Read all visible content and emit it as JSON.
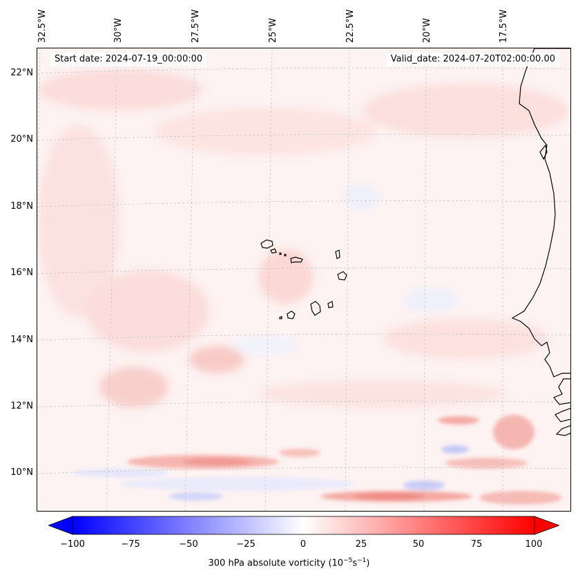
{
  "map": {
    "start_date_text": "Start date: 2024-07-19_00:00:00",
    "valid_date_text": "Valid_date: 2024-07-20T02:00:00.00",
    "longitude_labels": [
      "32.5°W",
      "30°W",
      "27.5°W",
      "25°W",
      "22.5°W",
      "20°W",
      "17.5°W"
    ],
    "latitude_labels": [
      "22°N",
      "20°N",
      "18°N",
      "16°N",
      "14°N",
      "12°N",
      "10°N"
    ],
    "field": "300 hPa absolute vorticity",
    "features": [
      "Cape Verde islands",
      "West African coastline"
    ]
  },
  "colorbar": {
    "ticks": [
      "−100",
      "−75",
      "−50",
      "−25",
      "0",
      "25",
      "50",
      "75",
      "100"
    ],
    "label": "300 hPa absolute vorticity (10",
    "label_exp1": "−5",
    "label_mid": "s",
    "label_exp2": "−1",
    "label_end": ")",
    "colors": {
      "min": "#0000ff",
      "mid": "#ffffff",
      "max": "#ff0000"
    }
  }
}
